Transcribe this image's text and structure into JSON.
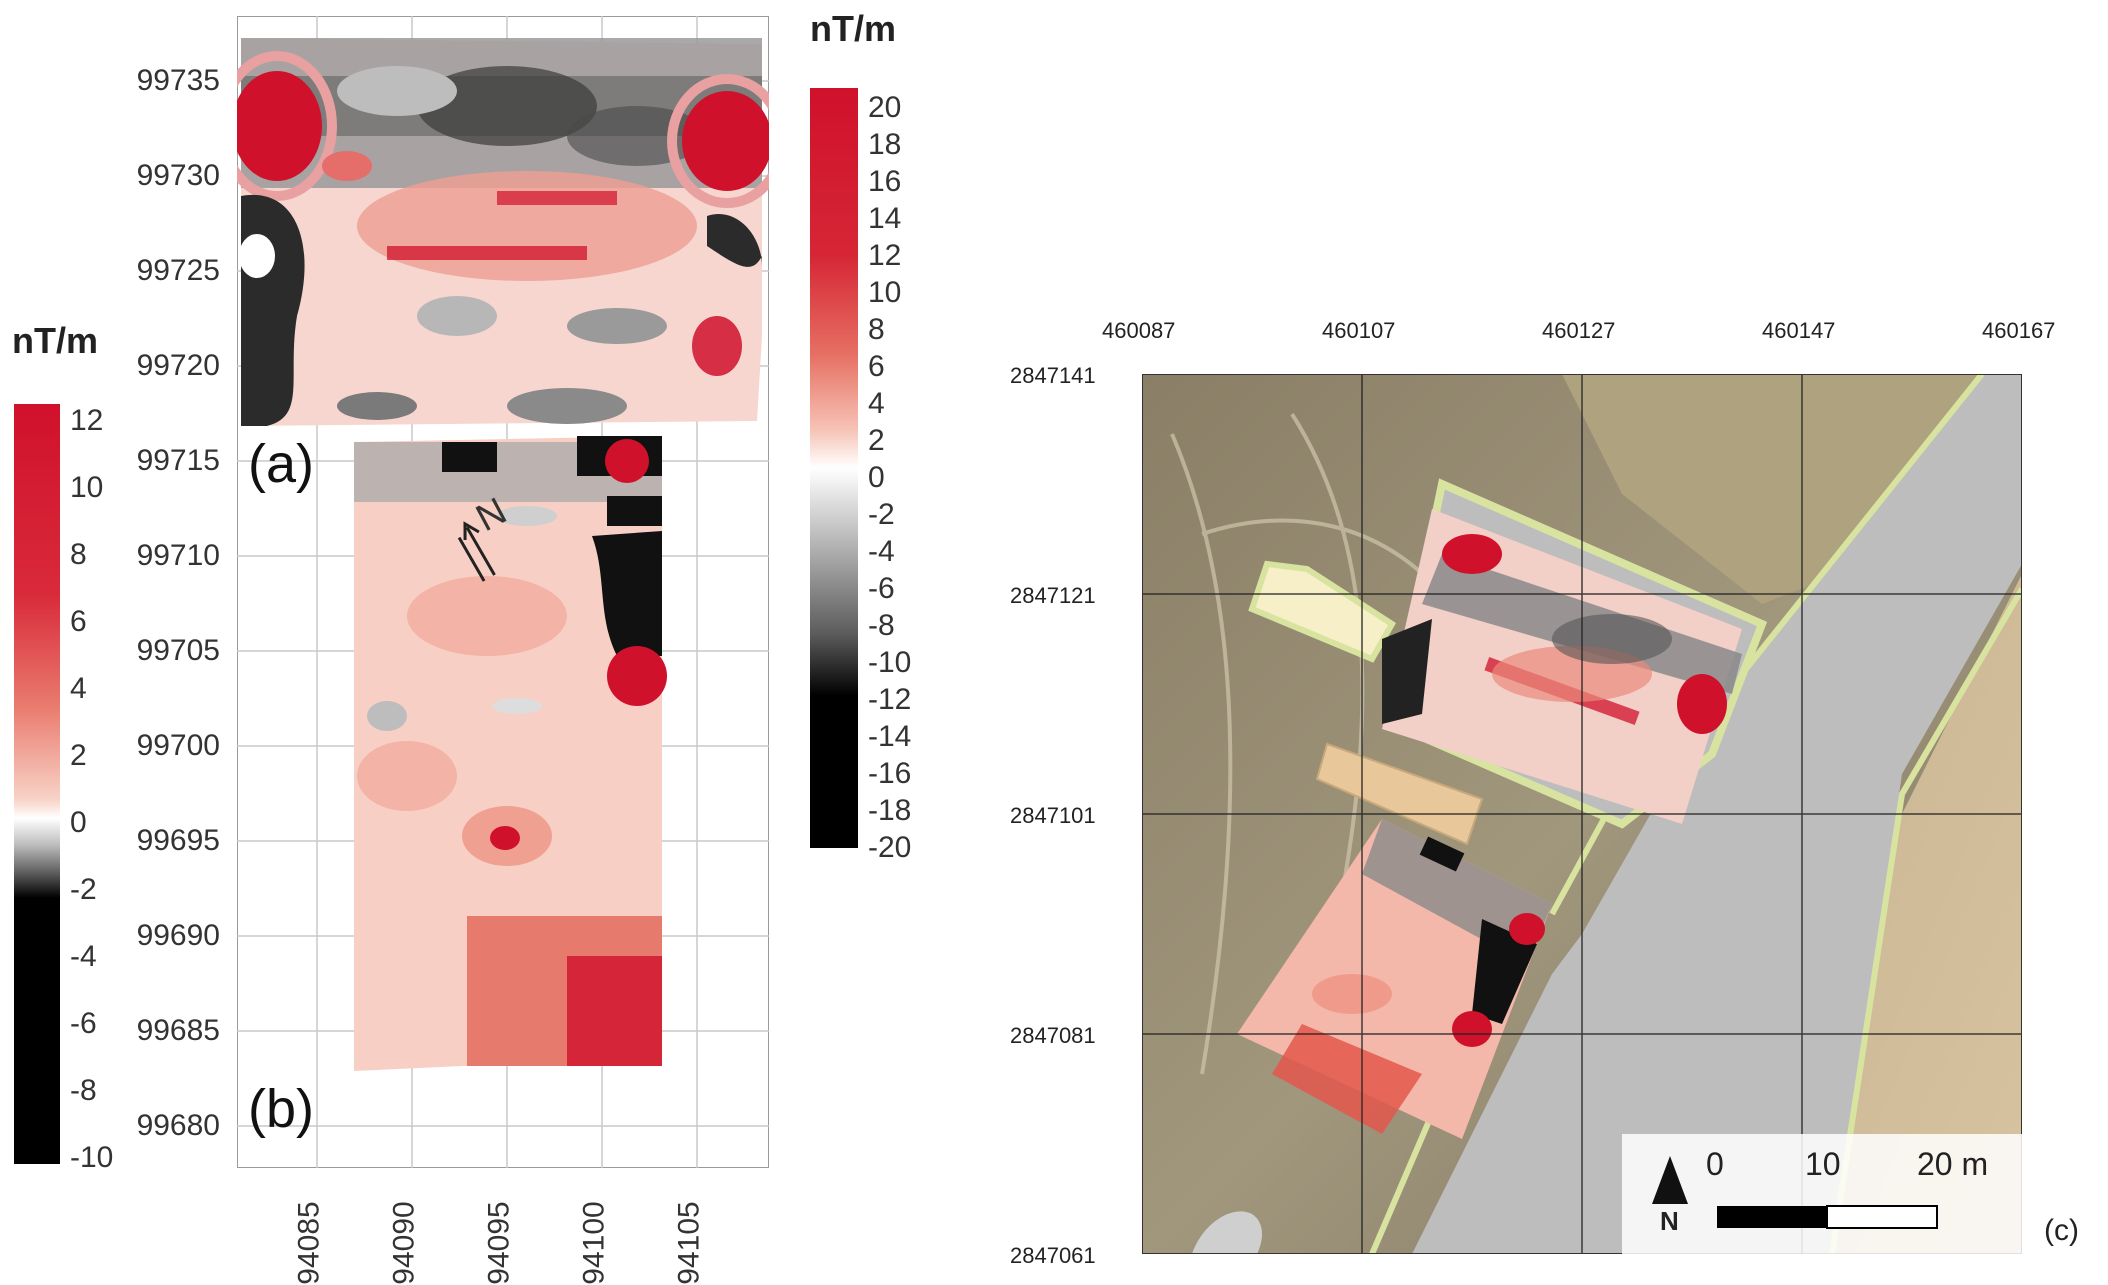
{
  "panel_ab": {
    "y_ticks": [
      "99735",
      "99730",
      "99725",
      "99720",
      "99715",
      "99710",
      "99705",
      "99700",
      "99695",
      "99690",
      "99685",
      "99680"
    ],
    "x_ticks": [
      "94085",
      "94090",
      "94095",
      "94100",
      "94105"
    ],
    "label_a": "(a)",
    "label_b": "(b)",
    "north_arrow_label": "N"
  },
  "colorbar_a": {
    "unit": "nT/m",
    "ticks": [
      "20",
      "18",
      "16",
      "14",
      "12",
      "10",
      "8",
      "6",
      "4",
      "2",
      "0",
      "-2",
      "-4",
      "-6",
      "-8",
      "-10",
      "-12",
      "-14",
      "-16",
      "-18",
      "-20"
    ],
    "range": [
      -20,
      20
    ]
  },
  "colorbar_b": {
    "unit": "nT/m",
    "ticks": [
      "12",
      "10",
      "8",
      "6",
      "4",
      "2",
      "0",
      "-2",
      "-4",
      "-6",
      "-8",
      "-10"
    ],
    "range": [
      -10,
      12
    ]
  },
  "panel_c": {
    "label": "(c)",
    "x_ticks": [
      "460087",
      "460107",
      "460127",
      "460147",
      "460167"
    ],
    "y_ticks": [
      "2847141",
      "2847121",
      "2847101",
      "2847081",
      "2847061"
    ],
    "scale_labels": [
      "0",
      "10",
      "20 m"
    ],
    "north_label": "N"
  },
  "colors": {
    "positive": "#d0112b",
    "negative": "#000000",
    "neutral": "#ffffff",
    "road": "#bdbdbd",
    "road_edge": "#d9e3a0"
  }
}
